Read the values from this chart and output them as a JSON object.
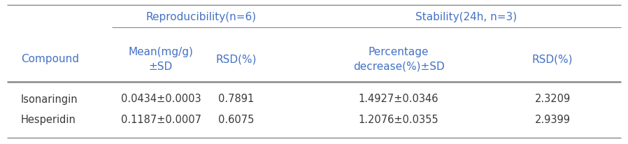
{
  "col_header_row2": [
    "Compound",
    "Mean(mg/g)\n±SD",
    "RSD(%)",
    "Percentage\ndecrease(%)±SD",
    "RSD(%)"
  ],
  "group_headers": [
    "Reproducibility(n=6)",
    "Stability(24h, n=3)"
  ],
  "rows": [
    [
      "Isonaringin",
      "0.0434±0.0003",
      "0.7891",
      "1.4927±0.0346",
      "2.3209"
    ],
    [
      "Hesperidin",
      "0.1187±0.0007",
      "0.6075",
      "1.2076±0.0355",
      "2.9399"
    ]
  ],
  "header_color": "#4472C4",
  "text_color": "#3a3a3a",
  "line_color": "#888888",
  "bg_color": "#ffffff",
  "font_size": 10.5,
  "header_font_size": 11
}
